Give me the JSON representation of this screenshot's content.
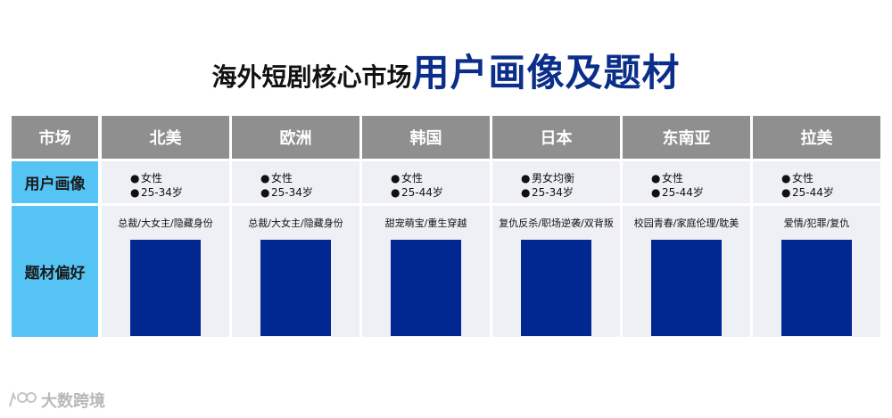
{
  "title": {
    "part1": "海外短剧核心市场",
    "part2": "用户画像及题材"
  },
  "table": {
    "corner": "市场",
    "markets": [
      "北美",
      "欧洲",
      "韩国",
      "日本",
      "东南亚",
      "拉美"
    ],
    "row_labels": {
      "profile": "用户画像",
      "topics": "题材偏好"
    },
    "profiles": [
      [
        "女性",
        "25-34岁"
      ],
      [
        "女性",
        "25-34岁"
      ],
      [
        "女性",
        "25-44岁"
      ],
      [
        "男女均衡",
        "25-34岁"
      ],
      [
        "女性",
        "25-44岁"
      ],
      [
        "女性",
        "25-44岁"
      ]
    ],
    "topics": [
      "总裁/大女主/隐藏身份",
      "总裁/大女主/隐藏身份",
      "甜宠萌宝/重生穿越",
      "复仇反杀/职场逆袭/双背叛",
      "校园青春/家庭伦理/耽美",
      "爱情/犯罪/复仇"
    ],
    "bullet": "●"
  },
  "colors": {
    "header": "#8f8f8f",
    "label": "#55c4f5",
    "body": "#eef0f5",
    "block": "#012891",
    "title_accent": "#0b2e8a"
  },
  "watermark": {
    "text": "大数跨境",
    "icon": "logo-icon"
  }
}
